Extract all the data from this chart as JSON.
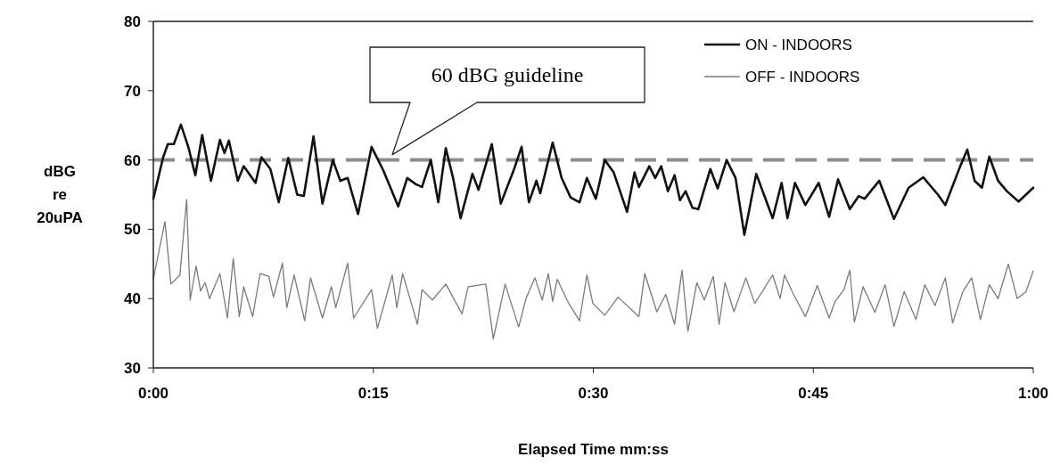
{
  "chart_data": {
    "type": "line",
    "xlabel": "Elapsed Time mm:ss",
    "ylabel": "dBG re 20uPA",
    "xlim": [
      0,
      60
    ],
    "xticks": [
      {
        "value": 0,
        "label": "0:00"
      },
      {
        "value": 15,
        "label": "0:15"
      },
      {
        "value": 30,
        "label": "0:30"
      },
      {
        "value": 45,
        "label": "0:45"
      },
      {
        "value": 60,
        "label": "1:00"
      }
    ],
    "ylim": [
      30,
      80
    ],
    "yticks": [
      30,
      40,
      50,
      60,
      70,
      80
    ],
    "grid": false,
    "legend": "top right",
    "marker": "none",
    "line_style": "solid",
    "ref_lines": [
      {
        "axis": "y",
        "value": 60,
        "color": "#8c8c8c",
        "line_style": "dashed"
      }
    ],
    "annotations": [
      "60 dBG guideline"
    ],
    "series": [
      {
        "name": "ON - INDOORS",
        "color": "#111111",
        "x": [
          0,
          0.67,
          0.99,
          1.4,
          1.88,
          2.41,
          2.86,
          3.33,
          3.93,
          4.54,
          4.85,
          5.15,
          5.76,
          6.16,
          6.97,
          7.37,
          7.98,
          8.55,
          9.2,
          9.81,
          10.26,
          10.92,
          11.53,
          12.24,
          12.75,
          13.25,
          13.96,
          14.88,
          15.68,
          16.7,
          17.31,
          17.91,
          18.32,
          18.92,
          19.43,
          19.94,
          20.44,
          20.95,
          21.76,
          22.17,
          23.08,
          23.69,
          24.6,
          25.11,
          25.61,
          26.12,
          26.38,
          27.23,
          27.84,
          28.45,
          29.06,
          29.56,
          30.17,
          30.78,
          31.39,
          32.3,
          32.81,
          33.11,
          33.82,
          34.22,
          34.63,
          35.09,
          35.54,
          35.91,
          36.29,
          36.76,
          37.16,
          37.98,
          38.48,
          39.09,
          39.7,
          40.3,
          41.11,
          42.23,
          42.84,
          43.24,
          43.75,
          44.46,
          45.37,
          46.08,
          46.69,
          47.49,
          48.1,
          48.5,
          49.5,
          50.5,
          51.5,
          52.5,
          53.5,
          54,
          55,
          55.5,
          56,
          56.5,
          57,
          57.6,
          58.2,
          59,
          60
        ],
        "values": [
          54.4,
          60.4,
          62.3,
          62.3,
          65.1,
          61.7,
          57.8,
          63.6,
          57,
          62.9,
          61,
          62.8,
          57,
          59.1,
          56.7,
          60.4,
          58.7,
          53.9,
          60.3,
          55,
          54.8,
          63.4,
          53.7,
          60,
          57,
          57.4,
          52.2,
          61.9,
          58.5,
          53.3,
          57.4,
          56.5,
          56.1,
          60,
          53.9,
          61.7,
          57.4,
          51.6,
          58,
          55.7,
          62.3,
          53.7,
          58.7,
          61.9,
          53.9,
          57,
          55.2,
          62.5,
          57.4,
          54.6,
          53.9,
          57.4,
          54.4,
          60,
          58.2,
          52.5,
          58.2,
          56.1,
          59.1,
          57.4,
          59.1,
          55.5,
          57.8,
          54.2,
          55.5,
          53.1,
          52.9,
          58.7,
          55.9,
          60,
          57.4,
          49.2,
          58,
          51.6,
          56.7,
          51.6,
          56.7,
          53.5,
          56.7,
          51.8,
          57.2,
          52.9,
          54.8,
          54.4,
          57,
          51.5,
          56,
          57.5,
          55,
          53.5,
          59,
          61.5,
          57,
          56,
          60.5,
          57,
          55.5,
          54,
          56
        ]
      },
      {
        "name": "OFF - INDOORS",
        "color": "#7a7a7a",
        "x": [
          0,
          0.79,
          1.2,
          1.81,
          2.27,
          2.51,
          2.92,
          3.22,
          3.53,
          3.83,
          4.54,
          5.05,
          5.45,
          5.86,
          6.16,
          6.77,
          7.28,
          7.88,
          8.19,
          8.8,
          9.1,
          9.6,
          10.32,
          10.72,
          11.53,
          12.14,
          12.44,
          13.25,
          13.66,
          14.88,
          15.28,
          16.29,
          16.6,
          17,
          18.01,
          18.32,
          19.03,
          19.94,
          21.05,
          21.46,
          22.67,
          23.18,
          23.99,
          24.91,
          25.41,
          26.02,
          26.52,
          26.93,
          27.23,
          27.54,
          28.25,
          29.06,
          29.56,
          29.97,
          30.78,
          31.69,
          33.11,
          33.51,
          34.33,
          34.94,
          35.54,
          36.05,
          36.45,
          37.06,
          37.57,
          38.18,
          38.58,
          38.98,
          39.59,
          40.4,
          41.01,
          42.23,
          42.74,
          43.04,
          43.65,
          44.46,
          45.27,
          46.08,
          46.49,
          47.09,
          47.49,
          47.8,
          48.4,
          49.2,
          49.9,
          50.5,
          51.2,
          52,
          52.6,
          53.3,
          54,
          54.5,
          55.2,
          55.8,
          56.4,
          57,
          57.6,
          58.3,
          58.9,
          59.5,
          60
        ],
        "values": [
          42.8,
          51.1,
          42.1,
          43.4,
          54.3,
          39.8,
          44.7,
          41.1,
          42.3,
          40,
          43.6,
          37.2,
          45.8,
          37.4,
          41.7,
          37.4,
          43.6,
          43.2,
          40.2,
          45.1,
          38.7,
          43.4,
          36.8,
          43,
          37.2,
          41.7,
          38.7,
          45.1,
          37.2,
          41.3,
          35.7,
          43.4,
          38.7,
          43.6,
          36.3,
          41.3,
          39.8,
          42.1,
          37.8,
          41.7,
          42.1,
          34.2,
          42.1,
          35.9,
          40,
          43,
          39.8,
          43.6,
          39.6,
          42.8,
          39.6,
          36.8,
          43.4,
          39.3,
          37.6,
          40.2,
          37.4,
          43.6,
          38.1,
          40.6,
          36.3,
          44.1,
          35.3,
          42.3,
          39.8,
          43.2,
          36.3,
          42.3,
          38.1,
          43,
          39.3,
          43.4,
          40,
          43.4,
          40.6,
          37.4,
          41.9,
          37.2,
          39.6,
          41.3,
          44.1,
          36.6,
          41.7,
          38,
          42,
          36,
          41,
          37,
          42,
          39,
          43,
          36.5,
          41,
          43,
          37,
          42,
          40,
          45,
          40,
          41,
          44
        ]
      }
    ]
  }
}
